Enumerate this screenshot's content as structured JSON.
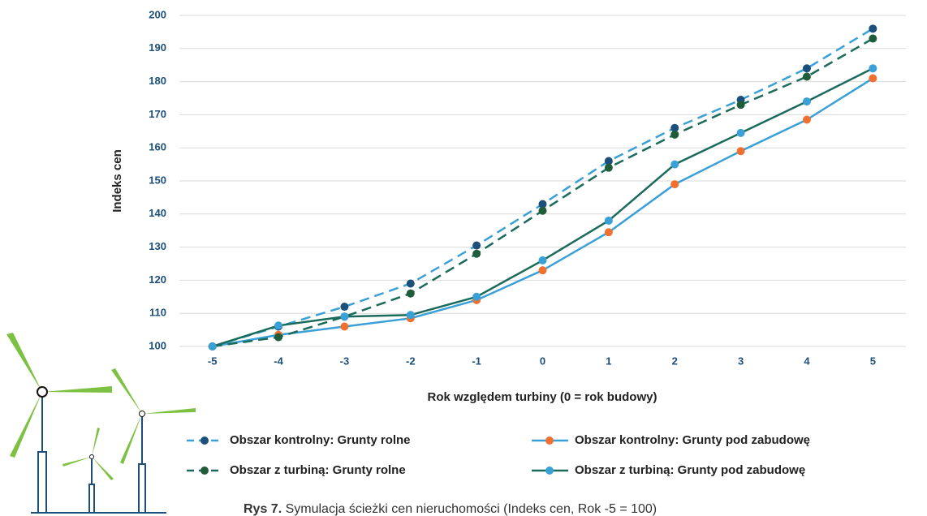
{
  "chart_data": {
    "type": "line",
    "y_label": "Indeks cen",
    "x_label": "Rok względem turbiny (0 = rok budowy)",
    "caption_label": "Rys 7.",
    "caption": "Symulacja ścieżki cen nieruchomości (Indeks cen, Rok -5 = 100)",
    "x": [
      -5,
      -4,
      -3,
      -2,
      -1,
      0,
      1,
      2,
      3,
      4,
      5
    ],
    "xlim": [
      -5.5,
      5.5
    ],
    "xticks": [
      -5,
      -4,
      -3,
      -2,
      -1,
      0,
      1,
      2,
      3,
      4,
      5
    ],
    "ylim": [
      100,
      200
    ],
    "yticks": [
      100,
      110,
      120,
      130,
      140,
      150,
      160,
      170,
      180,
      190,
      200
    ],
    "grid": true,
    "series": [
      {
        "name": "Obszar kontrolny: Grunty rolne",
        "color": "#3aa0d8",
        "marker_color": "#1c4f7a",
        "dash": true,
        "values": [
          100,
          106,
          112,
          119,
          130.5,
          143,
          156,
          166,
          174.5,
          184,
          196
        ]
      },
      {
        "name": "Obszar kontrolny: Grunty pod zabudowę",
        "color": "#3aa0d8",
        "marker_color": "#f07030",
        "dash": false,
        "values": [
          100,
          103.5,
          106,
          108.5,
          114,
          123,
          134.5,
          149,
          159,
          168.5,
          181
        ]
      },
      {
        "name": "Obszar z turbiną: Grunty rolne",
        "color": "#1b6b5a",
        "marker_color": "#1f5c3a",
        "dash": true,
        "values": [
          100,
          102.8,
          109,
          116,
          128,
          141,
          154,
          164,
          173,
          181.5,
          193
        ]
      },
      {
        "name": "Obszar z turbiną: Grunty pod zabudowę",
        "color": "#1b6b5a",
        "marker_color": "#3aa0d8",
        "dash": false,
        "values": [
          100,
          106.3,
          109,
          109.5,
          115,
          126,
          138,
          155,
          164.5,
          174,
          184
        ]
      }
    ]
  }
}
